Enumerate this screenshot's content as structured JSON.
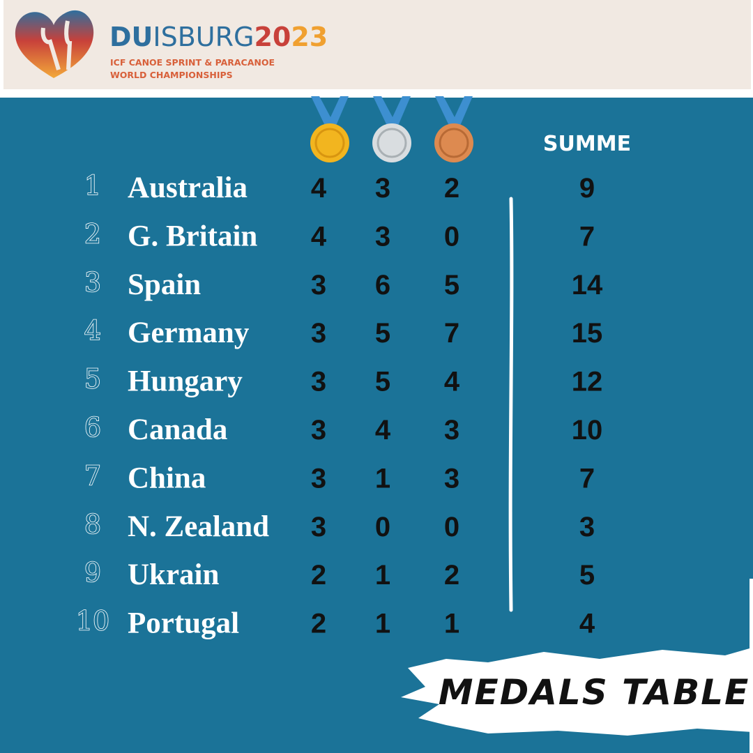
{
  "header": {
    "brand": {
      "du": "DU",
      "isburg": "ISBURG",
      "year_a": "20",
      "year_b": "23"
    },
    "subtitle": [
      "ICF CANOE SPRINT & PARACANOE",
      "WORLD CHAMPIONSHIPS"
    ]
  },
  "table": {
    "total_header": "SUMME",
    "rows": [
      {
        "rank": 1,
        "country": "Australia",
        "gold": 4,
        "silver": 3,
        "bronze": 2,
        "total": 9
      },
      {
        "rank": 2,
        "country": "G. Britain",
        "gold": 4,
        "silver": 3,
        "bronze": 0,
        "total": 7
      },
      {
        "rank": 3,
        "country": "Spain",
        "gold": 3,
        "silver": 6,
        "bronze": 5,
        "total": 14
      },
      {
        "rank": 4,
        "country": "Germany",
        "gold": 3,
        "silver": 5,
        "bronze": 7,
        "total": 15
      },
      {
        "rank": 5,
        "country": "Hungary",
        "gold": 3,
        "silver": 5,
        "bronze": 4,
        "total": 12
      },
      {
        "rank": 6,
        "country": "Canada",
        "gold": 3,
        "silver": 4,
        "bronze": 3,
        "total": 10
      },
      {
        "rank": 7,
        "country": "China",
        "gold": 3,
        "silver": 1,
        "bronze": 3,
        "total": 7
      },
      {
        "rank": 8,
        "country": "N. Zealand",
        "gold": 3,
        "silver": 0,
        "bronze": 0,
        "total": 3
      },
      {
        "rank": 9,
        "country": "Ukrain",
        "gold": 2,
        "silver": 1,
        "bronze": 2,
        "total": 5
      },
      {
        "rank": 10,
        "country": "Portugal",
        "gold": 2,
        "silver": 1,
        "bronze": 1,
        "total": 4
      }
    ]
  },
  "footer": "MEDALS TABLE"
}
